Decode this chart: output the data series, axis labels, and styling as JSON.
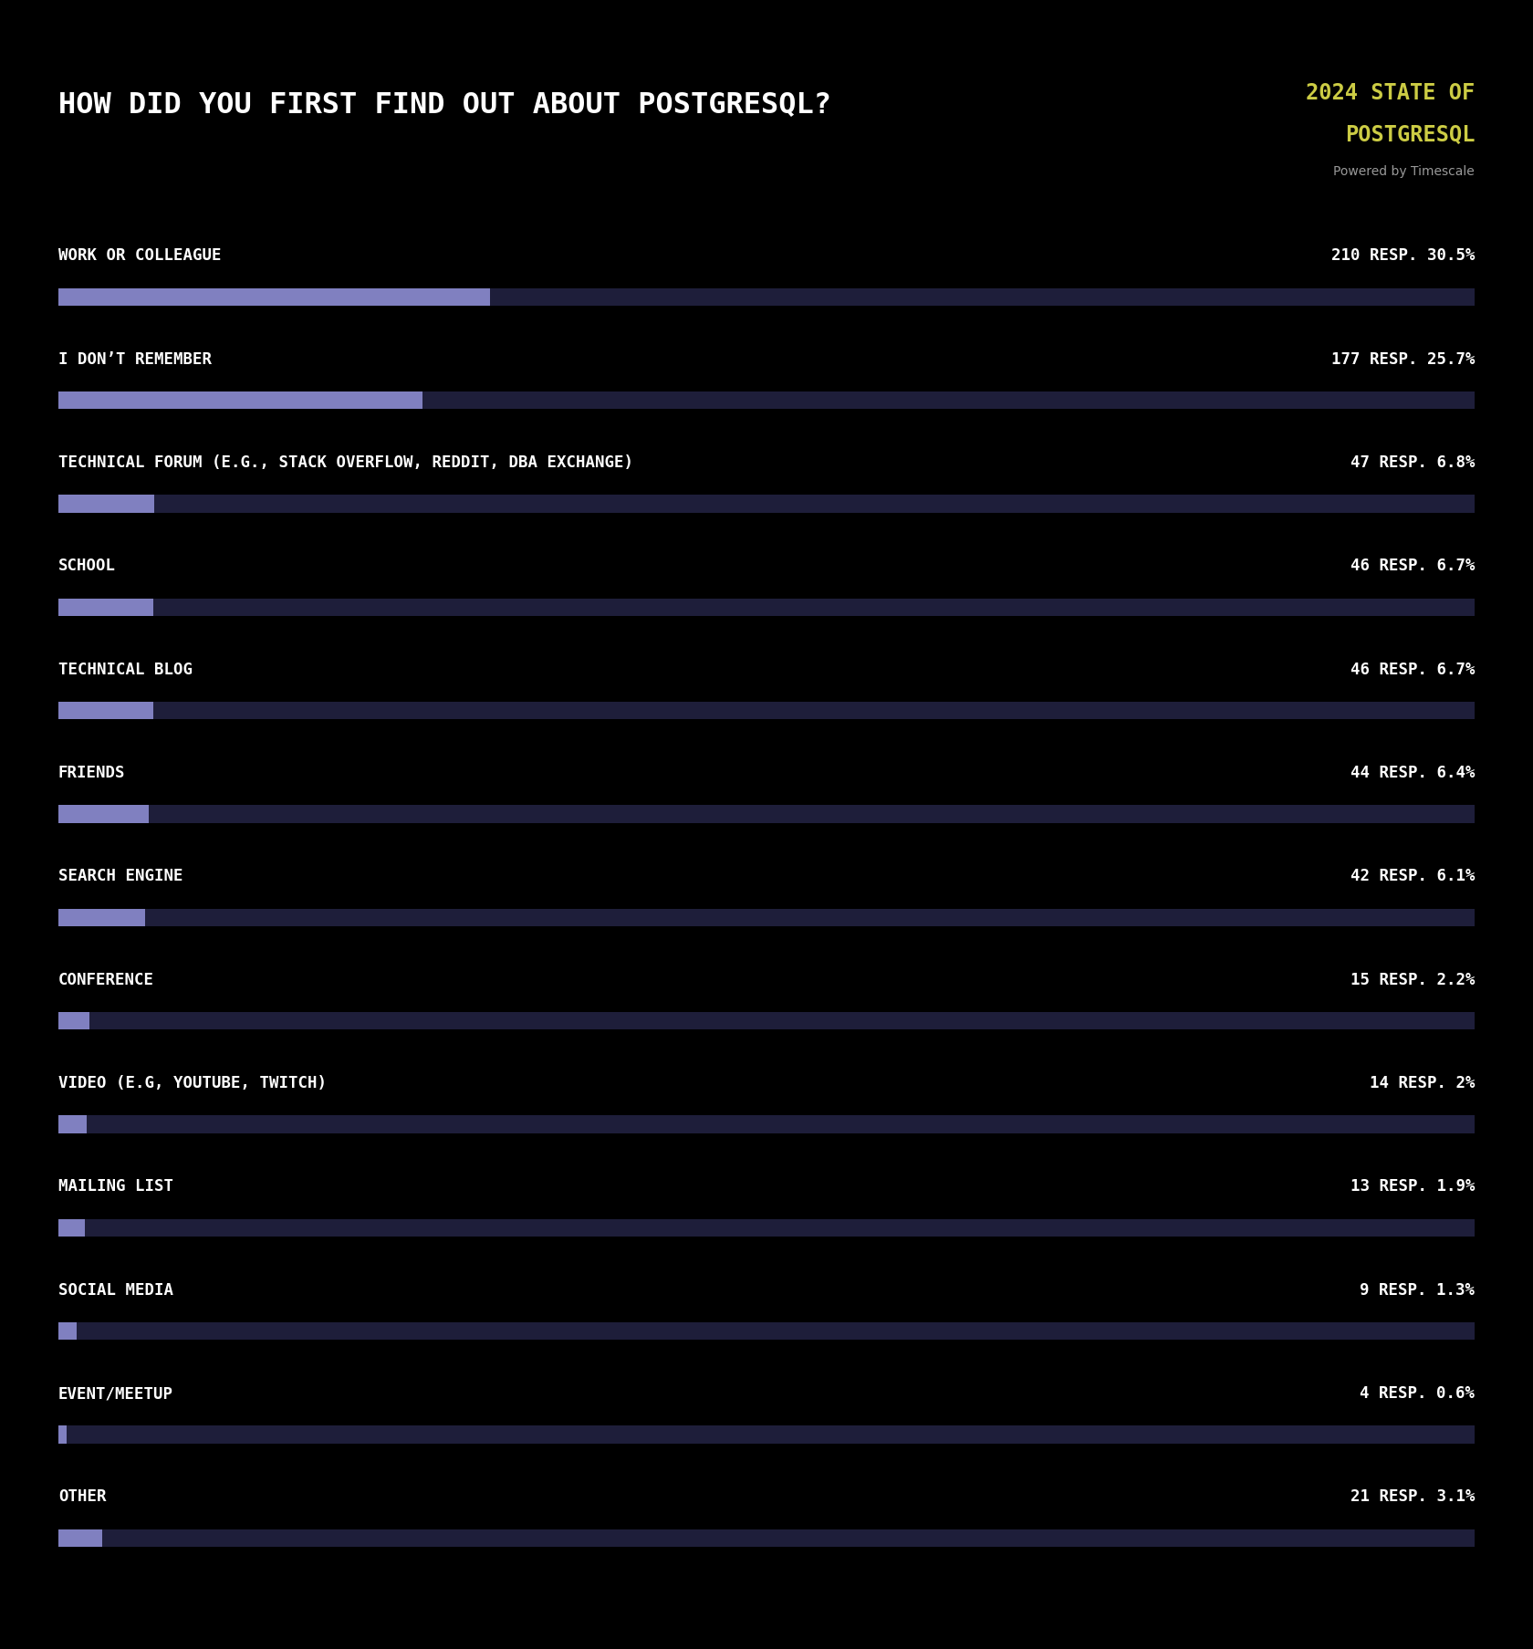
{
  "title": "HOW DID YOU FIRST FIND OUT ABOUT POSTGRESQL?",
  "subtitle_line1": "2024 STATE OF",
  "subtitle_line2": "POSTGRESQL",
  "subtitle_line3": "Powered by Timescale",
  "background_color": "#000000",
  "bar_bg_color": "#1e1e3a",
  "bar_fg_color": "#8080c0",
  "title_color": "#ffffff",
  "subtitle_color": "#cccc44",
  "subtitle3_color": "#999999",
  "label_color": "#ffffff",
  "categories": [
    "WORK OR COLLEAGUE",
    "I DON’T REMEMBER",
    "TECHNICAL FORUM (E.G., STACK OVERFLOW, REDDIT, DBA EXCHANGE)",
    "SCHOOL",
    "TECHNICAL BLOG",
    "FRIENDS",
    "SEARCH ENGINE",
    "CONFERENCE",
    "VIDEO (E.G, YOUTUBE, TWITCH)",
    "MAILING LIST",
    "SOCIAL MEDIA",
    "EVENT/MEETUP",
    "OTHER"
  ],
  "responses": [
    210,
    177,
    47,
    46,
    46,
    44,
    42,
    15,
    14,
    13,
    9,
    4,
    21
  ],
  "percentages": [
    30.5,
    25.7,
    6.8,
    6.7,
    6.7,
    6.4,
    6.1,
    2.2,
    2.0,
    1.9,
    1.3,
    0.6,
    3.1
  ],
  "pct_labels": [
    "30.5%",
    "25.7%",
    "6.8%",
    "6.7%",
    "6.7%",
    "6.4%",
    "6.1%",
    "2.2%",
    "2%",
    "1.9%",
    "1.3%",
    "0.6%",
    "3.1%"
  ],
  "figsize": [
    16.8,
    18.08
  ]
}
